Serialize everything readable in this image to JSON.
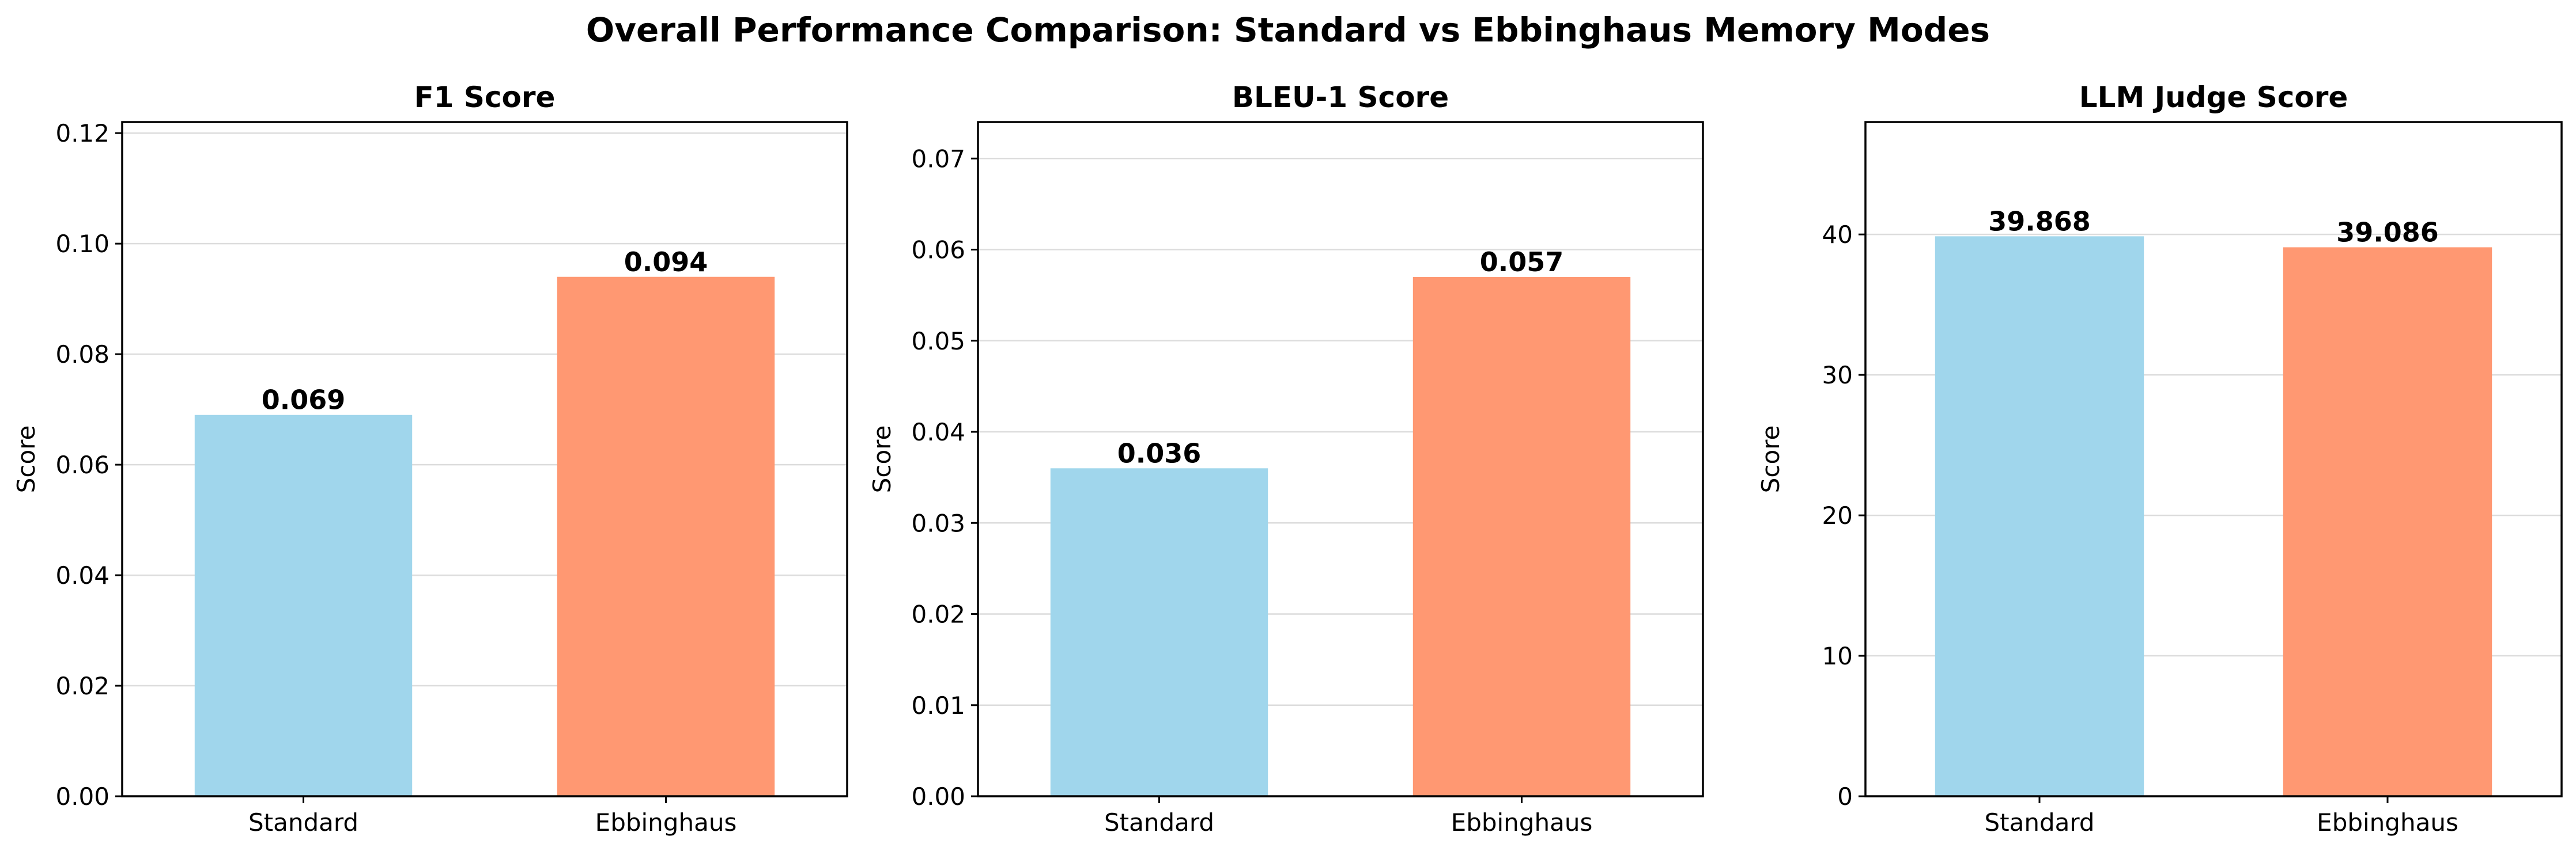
{
  "figure_title": "Overall Performance Comparison: Standard vs Ebbinghaus Memory Modes",
  "colors": {
    "standard": "#a0d6ec",
    "ebbinghaus": "#ff9872"
  },
  "chart_data": [
    {
      "type": "bar",
      "title": "F1 Score",
      "categories": [
        "Standard",
        "Ebbinghaus"
      ],
      "values": [
        0.069,
        0.094
      ],
      "value_labels": [
        "0.069",
        "0.094"
      ],
      "ylabel": "Score",
      "xlabel": "",
      "ylim": [
        0,
        0.122
      ],
      "yticks": [
        0.0,
        0.02,
        0.04,
        0.06,
        0.08,
        0.1,
        0.12
      ],
      "ytick_labels": [
        "0.00",
        "0.02",
        "0.04",
        "0.06",
        "0.08",
        "0.10",
        "0.12"
      ],
      "grid": "y"
    },
    {
      "type": "bar",
      "title": "BLEU-1 Score",
      "categories": [
        "Standard",
        "Ebbinghaus"
      ],
      "values": [
        0.036,
        0.057
      ],
      "value_labels": [
        "0.036",
        "0.057"
      ],
      "ylabel": "Score",
      "xlabel": "",
      "ylim": [
        0,
        0.074
      ],
      "yticks": [
        0.0,
        0.01,
        0.02,
        0.03,
        0.04,
        0.05,
        0.06,
        0.07
      ],
      "ytick_labels": [
        "0.00",
        "0.01",
        "0.02",
        "0.03",
        "0.04",
        "0.05",
        "0.06",
        "0.07"
      ],
      "grid": "y"
    },
    {
      "type": "bar",
      "title": "LLM Judge Score",
      "categories": [
        "Standard",
        "Ebbinghaus"
      ],
      "values": [
        39.868,
        39.086
      ],
      "value_labels": [
        "39.868",
        "39.086"
      ],
      "ylabel": "Score",
      "xlabel": "",
      "ylim": [
        0,
        48
      ],
      "yticks": [
        0,
        10,
        20,
        30,
        40
      ],
      "ytick_labels": [
        "0",
        "10",
        "20",
        "30",
        "40"
      ],
      "grid": "y"
    }
  ]
}
